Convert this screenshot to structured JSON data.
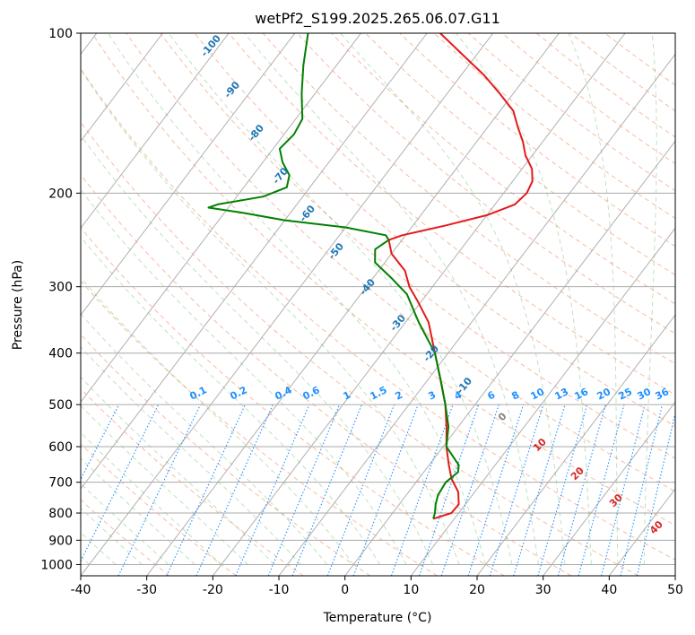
{
  "chart_data": {
    "type": "skew-t",
    "title": "wetPf2_S199.2025.265.06.07.G11",
    "xlabel": "Temperature (°C)",
    "ylabel": "Pressure (hPa)",
    "xlim": [
      -40,
      50
    ],
    "ylim_hpa": [
      1050,
      100
    ],
    "x_ticks": [
      -40,
      -30,
      -20,
      -10,
      0,
      10,
      20,
      30,
      40,
      50
    ],
    "y_ticks": [
      100,
      200,
      300,
      400,
      500,
      600,
      700,
      800,
      900,
      1000
    ],
    "series": [
      {
        "name": "Temperature",
        "color": "#e41a1c",
        "points": [
          {
            "p": 820,
            "t": 6.8
          },
          {
            "p": 800,
            "t": 8.9
          },
          {
            "p": 770,
            "t": 9.0
          },
          {
            "p": 730,
            "t": 7.5
          },
          {
            "p": 690,
            "t": 5.0
          },
          {
            "p": 650,
            "t": 3.0
          },
          {
            "p": 600,
            "t": 0.5
          },
          {
            "p": 550,
            "t": -1.8
          },
          {
            "p": 500,
            "t": -4.5
          },
          {
            "p": 450,
            "t": -8.0
          },
          {
            "p": 400,
            "t": -12.0
          },
          {
            "p": 350,
            "t": -16.5
          },
          {
            "p": 320,
            "t": -20.5
          },
          {
            "p": 300,
            "t": -23.5
          },
          {
            "p": 280,
            "t": -26.0
          },
          {
            "p": 260,
            "t": -30.0
          },
          {
            "p": 245,
            "t": -32.0
          },
          {
            "p": 240,
            "t": -30.5
          },
          {
            "p": 230,
            "t": -25.0
          },
          {
            "p": 220,
            "t": -20.0
          },
          {
            "p": 210,
            "t": -17.0
          },
          {
            "p": 200,
            "t": -16.5
          },
          {
            "p": 190,
            "t": -17.0
          },
          {
            "p": 180,
            "t": -18.5
          },
          {
            "p": 170,
            "t": -21.0
          },
          {
            "p": 160,
            "t": -23.0
          },
          {
            "p": 150,
            "t": -25.5
          },
          {
            "p": 140,
            "t": -28.0
          },
          {
            "p": 130,
            "t": -32.0
          },
          {
            "p": 120,
            "t": -36.5
          },
          {
            "p": 110,
            "t": -42.0
          },
          {
            "p": 100,
            "t": -48.0
          }
        ]
      },
      {
        "name": "Dewpoint",
        "color": "#008000",
        "points": [
          {
            "p": 820,
            "t": 6.8
          },
          {
            "p": 800,
            "t": 6.4
          },
          {
            "p": 770,
            "t": 5.5
          },
          {
            "p": 740,
            "t": 4.8
          },
          {
            "p": 700,
            "t": 4.5
          },
          {
            "p": 670,
            "t": 5.2
          },
          {
            "p": 650,
            "t": 4.5
          },
          {
            "p": 600,
            "t": 0.5
          },
          {
            "p": 550,
            "t": -1.5
          },
          {
            "p": 500,
            "t": -4.5
          },
          {
            "p": 450,
            "t": -8.0
          },
          {
            "p": 400,
            "t": -12.0
          },
          {
            "p": 350,
            "t": -18.0
          },
          {
            "p": 310,
            "t": -23.0
          },
          {
            "p": 290,
            "t": -27.0
          },
          {
            "p": 270,
            "t": -31.5
          },
          {
            "p": 255,
            "t": -33.0
          },
          {
            "p": 245,
            "t": -32.0
          },
          {
            "p": 240,
            "t": -33.0
          },
          {
            "p": 232,
            "t": -40.0
          },
          {
            "p": 225,
            "t": -50.0
          },
          {
            "p": 218,
            "t": -57.0
          },
          {
            "p": 213,
            "t": -63.0
          },
          {
            "p": 210,
            "t": -62.0
          },
          {
            "p": 203,
            "t": -56.0
          },
          {
            "p": 195,
            "t": -53.5
          },
          {
            "p": 185,
            "t": -54.5
          },
          {
            "p": 175,
            "t": -57.0
          },
          {
            "p": 165,
            "t": -59.0
          },
          {
            "p": 155,
            "t": -58.5
          },
          {
            "p": 145,
            "t": -59.0
          },
          {
            "p": 130,
            "t": -62.0
          },
          {
            "p": 115,
            "t": -65.0
          },
          {
            "p": 100,
            "t": -68.0
          }
        ]
      }
    ],
    "dry_adiabat_labels": [
      "-100",
      "-90",
      "-80",
      "-70",
      "-60",
      "-50",
      "-40",
      "-30",
      "-20",
      "-10"
    ],
    "mixing_ratio_labels": [
      "0.1",
      "0.2",
      "0.4",
      "0.6",
      "1",
      "1.5",
      "2",
      "3",
      "4",
      "6",
      "8",
      "10",
      "13",
      "16",
      "20",
      "25",
      "30",
      "36"
    ],
    "moist_adiabat_labels": [
      "0",
      "10",
      "20",
      "30",
      "40"
    ],
    "grid": true
  }
}
